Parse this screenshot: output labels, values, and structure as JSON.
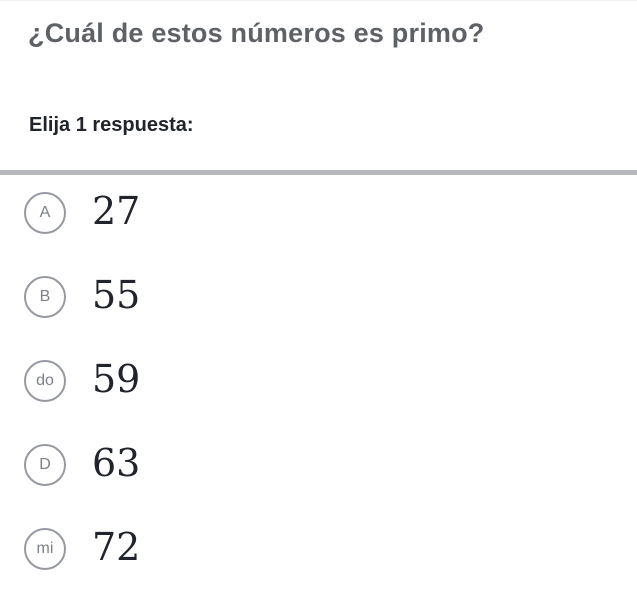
{
  "question": {
    "title": "¿Cuál de estos números es primo?",
    "prompt": "Elija 1 respuesta:"
  },
  "choices": [
    {
      "label": "A",
      "value": "27"
    },
    {
      "label": "B",
      "value": "55"
    },
    {
      "label": "do",
      "value": "59"
    },
    {
      "label": "D",
      "value": "63"
    },
    {
      "label": "mi",
      "value": "72"
    }
  ],
  "colors": {
    "title_text": "#5e6267",
    "prompt_text": "#21242c",
    "divider": "#b5b7ba",
    "bubble_border": "#969aa0",
    "bubble_label": "#7d8187",
    "choice_value_text": "#21242c",
    "background": "#ffffff"
  }
}
